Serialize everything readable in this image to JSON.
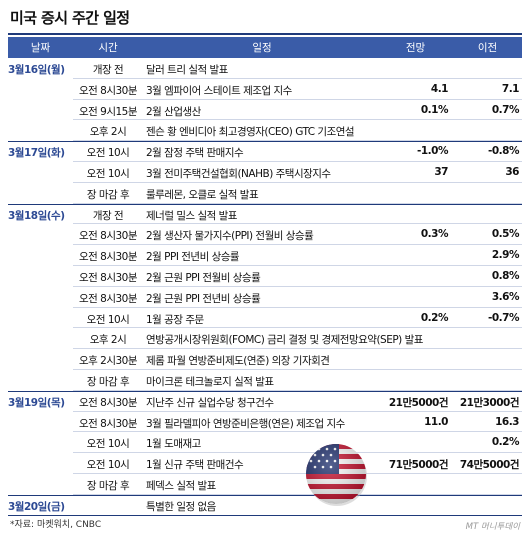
{
  "title": "미국 증시 주간 일정",
  "headers": {
    "date": "날짜",
    "time": "시간",
    "event": "일정",
    "forecast": "전망",
    "previous": "이전"
  },
  "rows": [
    {
      "date": "3월16일(월)",
      "time": "개장 전",
      "event": "달러 트리 실적 발표",
      "forecast": "",
      "previous": ""
    },
    {
      "date": "",
      "time": "오전 8시30분",
      "event": "3월 엠파이어 스테이트 제조업 지수",
      "forecast": "4.1",
      "previous": "7.1"
    },
    {
      "date": "",
      "time": "오전 9시15분",
      "event": "2월 산업생산",
      "forecast": "0.1%",
      "previous": "0.7%"
    },
    {
      "date": "",
      "time": "오후 2시",
      "event": "젠슨 황 엔비디아 최고경영자(CEO) GTC 기조연설",
      "forecast": "",
      "previous": ""
    },
    {
      "date": "3월17일(화)",
      "time": "오전 10시",
      "event": "2월 잠정 주택 판매지수",
      "forecast": "-1.0%",
      "previous": "-0.8%"
    },
    {
      "date": "",
      "time": "오전 10시",
      "event": "3월 전미주택건설협회(NAHB) 주택시장지수",
      "forecast": "37",
      "previous": "36"
    },
    {
      "date": "",
      "time": "장 마감 후",
      "event": "룰루레몬, 오클로 실적 발표",
      "forecast": "",
      "previous": ""
    },
    {
      "date": "3월18일(수)",
      "time": "개장 전",
      "event": "제너럴 밀스 실적 발표",
      "forecast": "",
      "previous": ""
    },
    {
      "date": "",
      "time": "오전 8시30분",
      "event": "2월 생산자 물가지수(PPI) 전월비 상승률",
      "forecast": "0.3%",
      "previous": "0.5%"
    },
    {
      "date": "",
      "time": "오전 8시30분",
      "event": "2월 PPI 전년비 상승률",
      "forecast": "",
      "previous": "2.9%"
    },
    {
      "date": "",
      "time": "오전 8시30분",
      "event": "2월 근원 PPI 전월비 상승률",
      "forecast": "",
      "previous": "0.8%"
    },
    {
      "date": "",
      "time": "오전 8시30분",
      "event": "2월 근원 PPI 전년비 상승률",
      "forecast": "",
      "previous": "3.6%"
    },
    {
      "date": "",
      "time": "오전 10시",
      "event": "1월 공장 주문",
      "forecast": "0.2%",
      "previous": "-0.7%"
    },
    {
      "date": "",
      "time": "오후 2시",
      "event": "연방공개시장위원회(FOMC) 금리 결정 및 경제전망요약(SEP) 발표",
      "forecast": "",
      "previous": ""
    },
    {
      "date": "",
      "time": "오후 2시30분",
      "event": "제롬 파월 연방준비제도(연준) 의장 기자회견",
      "forecast": "",
      "previous": ""
    },
    {
      "date": "",
      "time": "장 마감 후",
      "event": "마이크론 테크놀로지 실적 발표",
      "forecast": "",
      "previous": ""
    },
    {
      "date": "3월19일(목)",
      "time": "오전 8시30분",
      "event": "지난주 신규 실업수당 청구건수",
      "forecast": "21만5000건",
      "previous": "21만3000건"
    },
    {
      "date": "",
      "time": "오전 8시30분",
      "event": "3월 필라델피아 연방준비은행(연은) 제조업 지수",
      "forecast": "11.0",
      "previous": "16.3"
    },
    {
      "date": "",
      "time": "오전 10시",
      "event": "1월 도매재고",
      "forecast": "",
      "previous": "0.2%"
    },
    {
      "date": "",
      "time": "오전 10시",
      "event": "1월 신규 주택 판매건수",
      "forecast": "71만5000건",
      "previous": "74만5000건"
    },
    {
      "date": "",
      "time": "장 마감 후",
      "event": "페덱스 실적 발표",
      "forecast": "",
      "previous": ""
    },
    {
      "date": "3월20일(금)",
      "time": "",
      "event": "특별한 일정 없음",
      "forecast": "",
      "previous": ""
    }
  ],
  "source": "*자료: 마켓워치, CNBC",
  "logo": "MT 머니투데이",
  "flag_icon": "us-flag-icon",
  "colors": {
    "header_bg": "#3a5ca8",
    "date_text": "#2d4a94",
    "rule": "#1f3a7a"
  }
}
